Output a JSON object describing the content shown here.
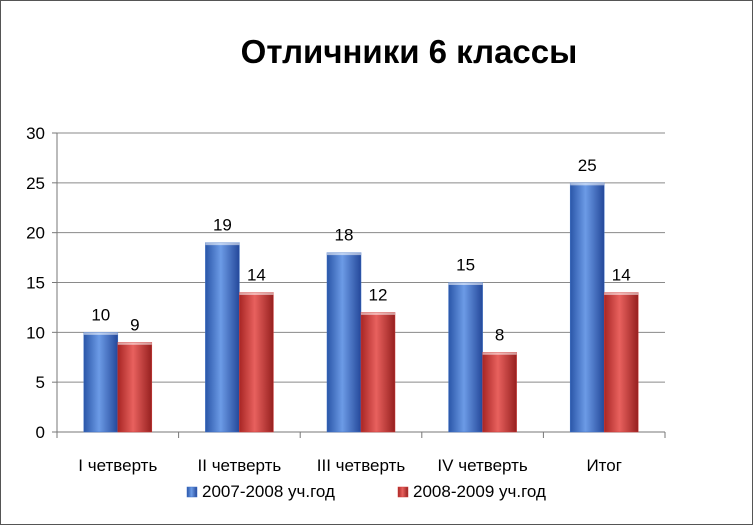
{
  "chart_data": {
    "type": "bar",
    "title": "Отличники 6 классы",
    "categories": [
      "I четверть",
      "II четверть",
      "III четверть",
      "IV четверть",
      "Итог"
    ],
    "series": [
      {
        "name": "2007-2008 уч.год",
        "values": [
          10,
          19,
          18,
          15,
          25
        ],
        "color": "#3d6fc4"
      },
      {
        "name": "2008-2009 уч.год",
        "values": [
          9,
          14,
          12,
          8,
          14
        ],
        "color": "#cf3a38"
      }
    ],
    "ylim": [
      0,
      30
    ],
    "yticks": [
      0,
      5,
      10,
      15,
      20,
      25,
      30
    ],
    "grid": true,
    "legend_position": "bottom",
    "data_labels": true
  }
}
